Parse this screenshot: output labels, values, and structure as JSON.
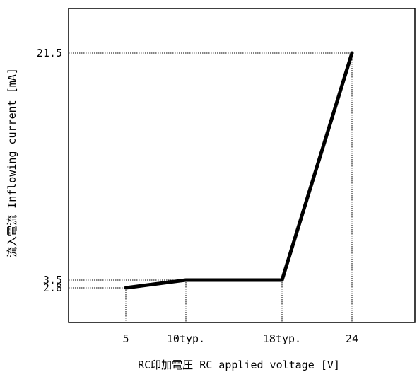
{
  "chart_data": {
    "type": "line",
    "title": "",
    "xlabel": "RC印加電圧  RC applied voltage [V]",
    "ylabel": "流入電流  Inflowing current [mA]",
    "x_tick_labels": [
      {
        "value": 5,
        "label": "5"
      },
      {
        "value": 10,
        "label": "10typ."
      },
      {
        "value": 18,
        "label": "18typ."
      },
      {
        "value": 24,
        "label": "24"
      }
    ],
    "y_tick_labels": [
      {
        "value": 2.8,
        "label": "2.8"
      },
      {
        "value": 3.5,
        "label": "3.5"
      },
      {
        "value": 21.5,
        "label": "21.5"
      }
    ],
    "series": [
      {
        "x": [
          5,
          10,
          18,
          24
        ],
        "y": [
          2.8,
          3.5,
          3.5,
          21.5
        ]
      }
    ],
    "reference_lines": [
      {
        "x": 5,
        "y": 2.8
      },
      {
        "x": 10,
        "y": 3.5
      },
      {
        "x": 18,
        "y": 3.5
      },
      {
        "x": 24,
        "y": 21.5
      }
    ],
    "grid": false,
    "legend": "none"
  }
}
